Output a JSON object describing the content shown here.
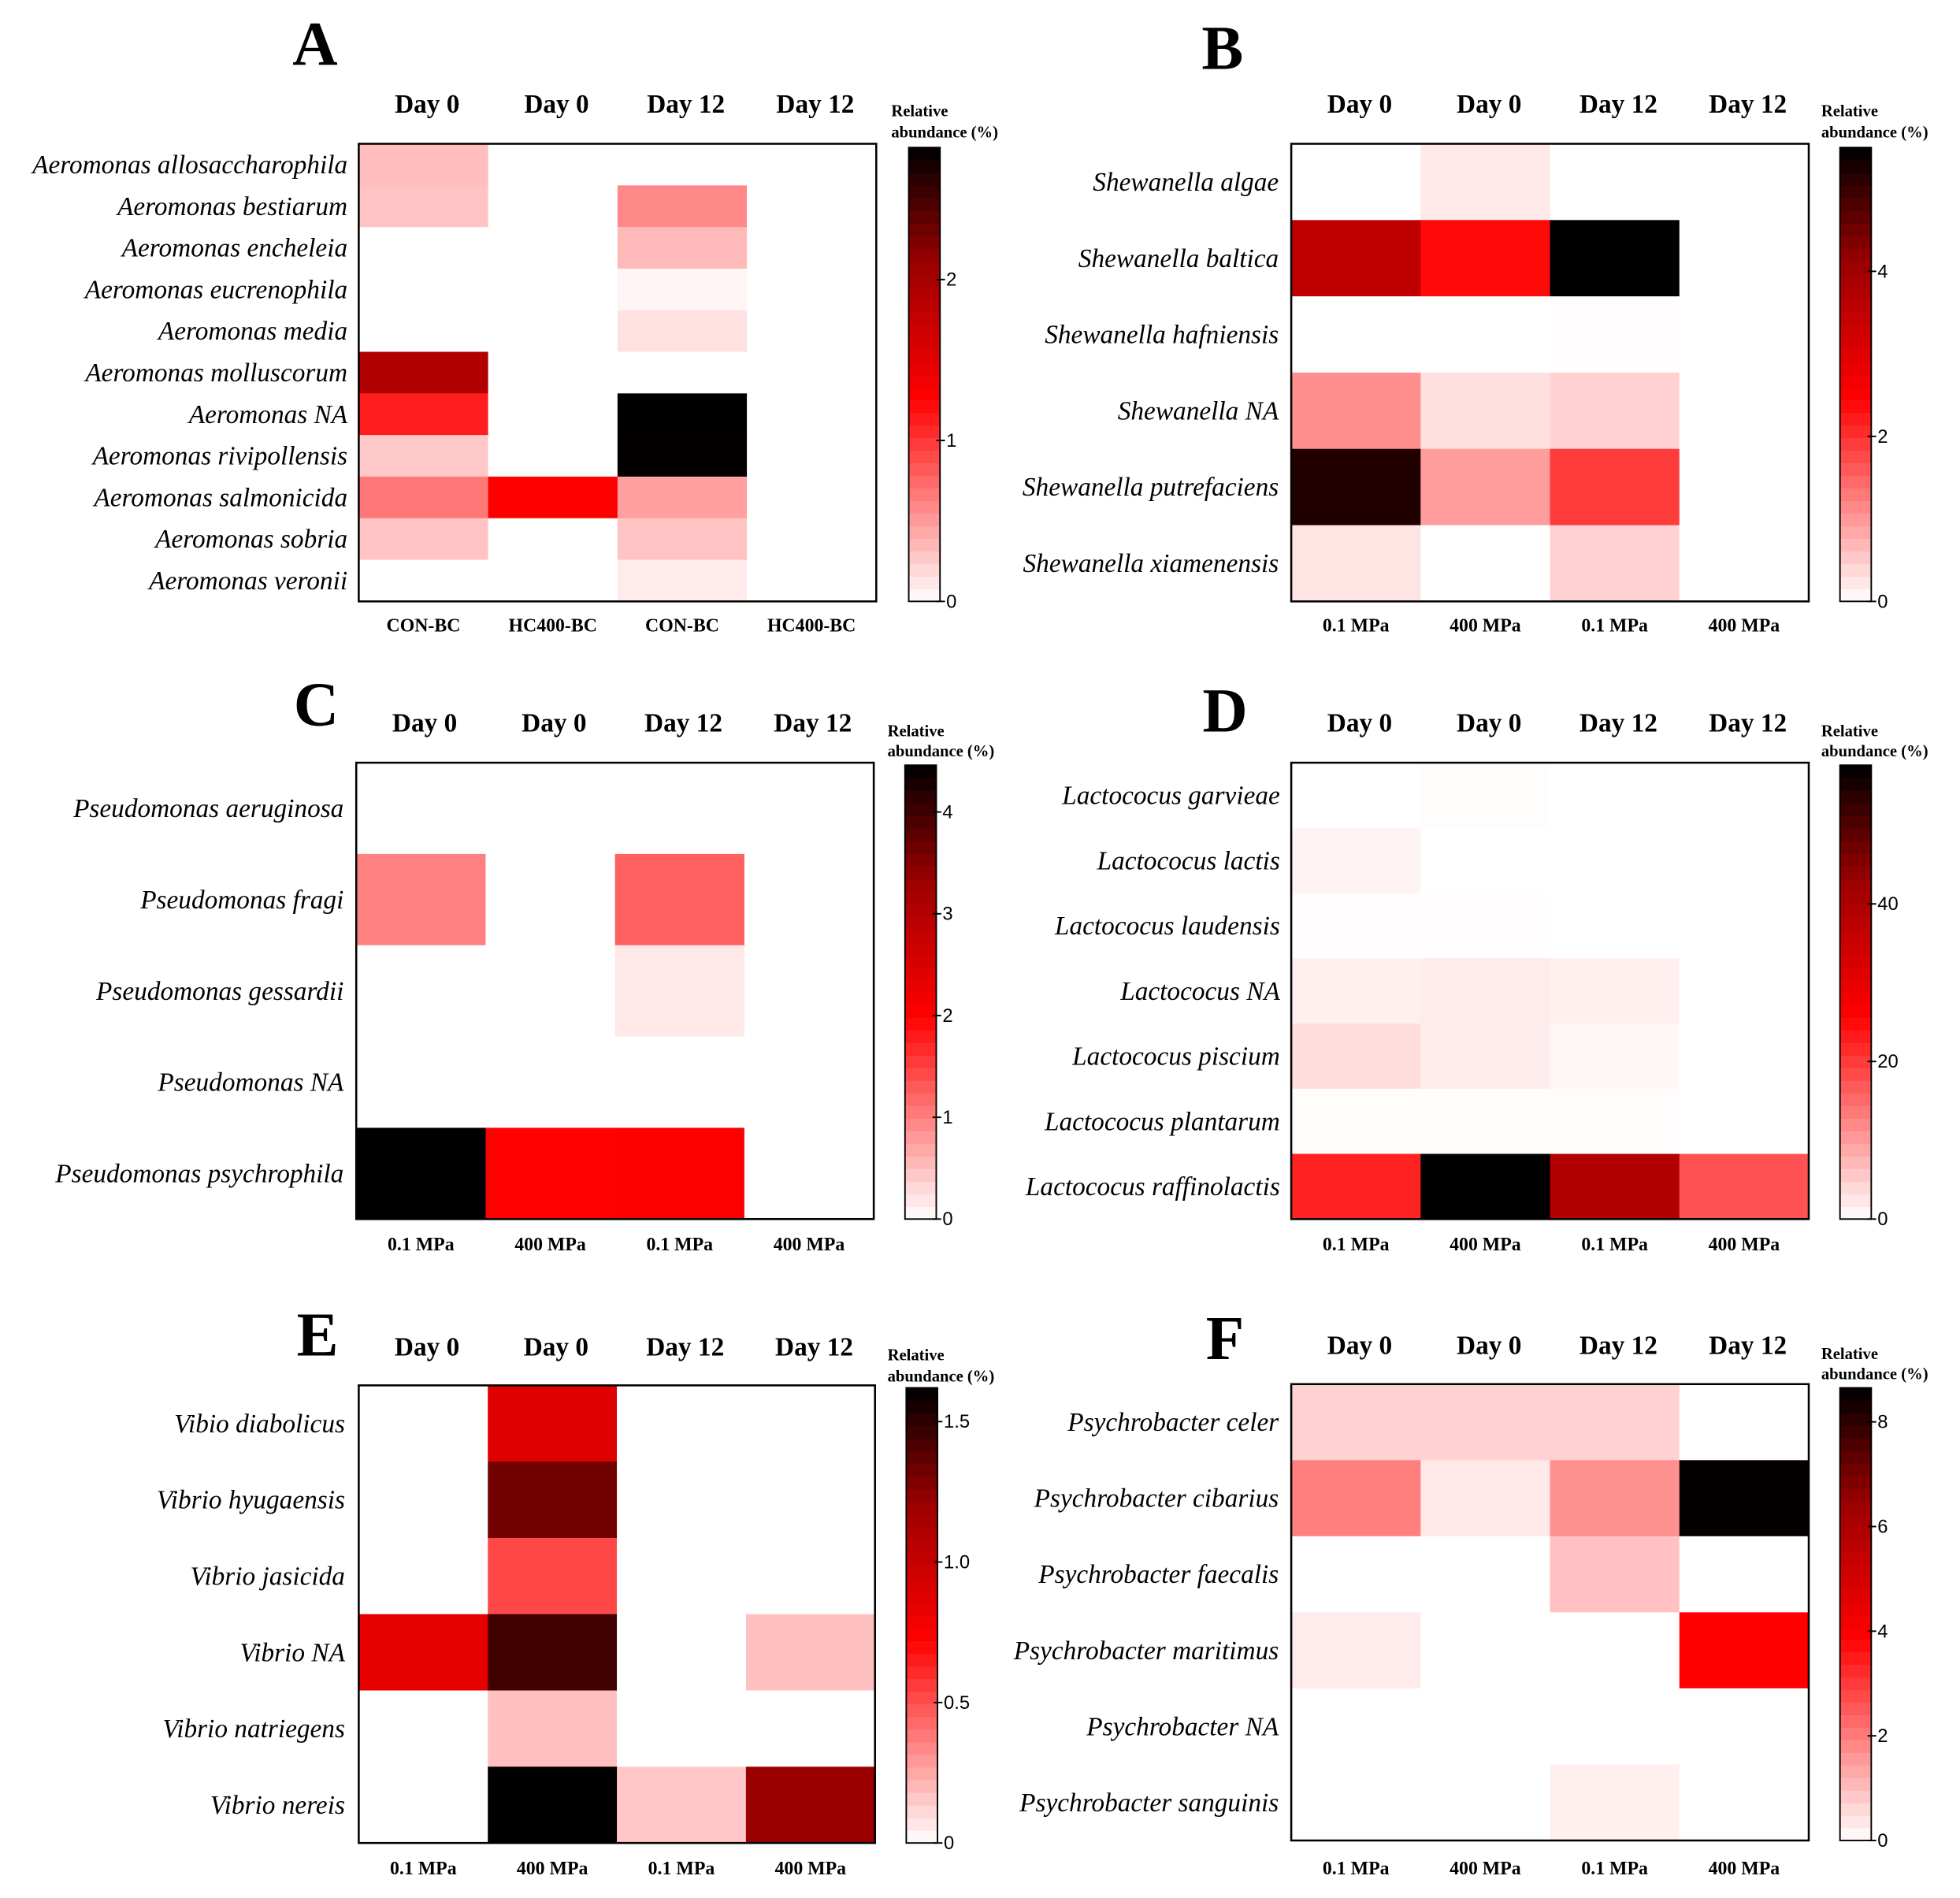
{
  "colormap": [
    "#ffffff",
    "#ff0000",
    "#990000",
    "#000000"
  ],
  "chart_data": [
    {
      "panel": "A",
      "type": "heatmap",
      "column_headers": [
        "Day 0",
        "Day 0",
        "Day 12",
        "Day 12"
      ],
      "column_labels": [
        "CON-BC",
        "HC400-BC",
        "CON-BC",
        "HC400-BC"
      ],
      "rows": [
        "Aeromonas allosaccharophila",
        "Aeromonas bestiarum",
        "Aeromonas encheleia",
        "Aeromonas eucrenophila",
        "Aeromonas media",
        "Aeromonas molluscorum",
        "Aeromonas NA",
        "Aeromonas rivipollensis",
        "Aeromonas salmonicida",
        "Aeromonas sobria",
        "Aeromonas veronii"
      ],
      "values": [
        [
          0.33,
          0,
          0,
          0
        ],
        [
          0.3,
          0,
          0.59,
          0
        ],
        [
          0,
          0,
          0.35,
          0
        ],
        [
          0,
          0,
          0.05,
          0
        ],
        [
          0,
          0,
          0.15,
          0
        ],
        [
          1.92,
          0,
          0,
          0
        ],
        [
          1.12,
          0,
          2.82,
          0
        ],
        [
          0.27,
          0,
          2.8,
          0
        ],
        [
          0.67,
          1.27,
          0.48,
          0
        ],
        [
          0.3,
          0,
          0.3,
          0
        ],
        [
          0,
          0,
          0.1,
          0
        ]
      ],
      "colorbar": {
        "label_lines": [
          "Relative",
          "abundance (%)"
        ],
        "min": 0,
        "max": 2.82,
        "ticks": [
          0,
          1,
          2
        ],
        "tick_labels": [
          "0",
          "1",
          "2"
        ]
      }
    },
    {
      "panel": "B",
      "type": "heatmap",
      "column_headers": [
        "Day 0",
        "Day 0",
        "Day 12",
        "Day 12"
      ],
      "column_labels": [
        "0.1 MPa",
        "400 MPa",
        "0.1 MPa",
        "400 MPa"
      ],
      "rows": [
        "Shewanella algae",
        "Shewanella baltica",
        "Shewanella hafniensis",
        "Shewanella NA",
        "Shewanella putrefaciens",
        "Shewanella xiamenensis"
      ],
      "values": [
        [
          0,
          0.22,
          0,
          0
        ],
        [
          3.5,
          2.4,
          5.5,
          0
        ],
        [
          0,
          0,
          0.02,
          0
        ],
        [
          1.1,
          0.3,
          0.45,
          0
        ],
        [
          5.2,
          0.95,
          1.9,
          0
        ],
        [
          0.26,
          0,
          0.45,
          0
        ]
      ],
      "colorbar": {
        "label_lines": [
          "Relative",
          "abundance (%)"
        ],
        "min": 0,
        "max": 5.5,
        "ticks": [
          0,
          2,
          4
        ],
        "tick_labels": [
          "0",
          "2",
          "4"
        ]
      }
    },
    {
      "panel": "C",
      "type": "heatmap",
      "column_headers": [
        "Day 0",
        "Day 0",
        "Day 12",
        "Day 12"
      ],
      "column_labels": [
        "0.1 MPa",
        "400 MPa",
        "0.1 MPa",
        "400 MPa"
      ],
      "rows": [
        "Pseudomonas aeruginosa",
        "Pseudomonas fragi",
        "Pseudomonas gessardii",
        "Pseudomonas NA",
        "Pseudomonas psychrophila"
      ],
      "values": [
        [
          0,
          0,
          0,
          0
        ],
        [
          1.0,
          0,
          1.25,
          0
        ],
        [
          0,
          0,
          0.18,
          0
        ],
        [
          0,
          0,
          0,
          0
        ],
        [
          4.46,
          2.0,
          2.05,
          0
        ]
      ],
      "colorbar": {
        "label_lines": [
          "Relative",
          "abundance (%)"
        ],
        "min": 0,
        "max": 4.46,
        "ticks": [
          0,
          1,
          2,
          3,
          4
        ],
        "tick_labels": [
          "0",
          "1",
          "2",
          "3",
          "4"
        ]
      }
    },
    {
      "panel": "D",
      "type": "heatmap",
      "column_headers": [
        "Day 0",
        "Day 0",
        "Day 12",
        "Day 12"
      ],
      "column_labels": [
        "0.1 MPa",
        "400 MPa",
        "0.1 MPa",
        "400 MPa"
      ],
      "rows": [
        "Lactococus garvieae",
        "Lactococus lactis",
        "Lactococus laudensis",
        "Lactococus NA",
        "Lactococus piscium",
        "Lactococus plantarum",
        "Lactococus raffinolactis"
      ],
      "values": [
        [
          0,
          0.3,
          0,
          0
        ],
        [
          1.2,
          0,
          0,
          0
        ],
        [
          0.2,
          0.2,
          0,
          0
        ],
        [
          1.5,
          2.0,
          1.5,
          0
        ],
        [
          3.5,
          1.8,
          0.8,
          0
        ],
        [
          0.3,
          0.3,
          0.3,
          0
        ],
        [
          22.5,
          57.6,
          39,
          17.5
        ]
      ],
      "colorbar": {
        "label_lines": [
          "Relative",
          "abundance (%)"
        ],
        "min": 0,
        "max": 57.6,
        "ticks": [
          0,
          20,
          40
        ],
        "tick_labels": [
          "0",
          "20",
          "40"
        ]
      }
    },
    {
      "panel": "E",
      "type": "heatmap",
      "column_headers": [
        "Day 0",
        "Day 0",
        "Day 12",
        "Day 12"
      ],
      "column_labels": [
        "0.1 MPa",
        "400 MPa",
        "0.1 MPa",
        "400 MPa"
      ],
      "rows": [
        "Vibio diabolicus",
        "Vibrio hyugaensis",
        "Vibrio jasicida",
        "Vibrio NA",
        "Vibrio natriegens",
        "Vibrio nereis"
      ],
      "values": [
        [
          0,
          0.88,
          0,
          0
        ],
        [
          0,
          1.32,
          0,
          0
        ],
        [
          0,
          0.52,
          0,
          0
        ],
        [
          0.85,
          1.45,
          0,
          0.18
        ],
        [
          0,
          0.18,
          0,
          0
        ],
        [
          0,
          1.62,
          0.16,
          1.21
        ]
      ],
      "colorbar": {
        "label_lines": [
          "Relative",
          "abundance (%)"
        ],
        "min": 0,
        "max": 1.62,
        "ticks": [
          0,
          0.5,
          1.0,
          1.5
        ],
        "tick_labels": [
          "0",
          "0.5",
          "1.0",
          "1.5"
        ]
      }
    },
    {
      "panel": "F",
      "type": "heatmap",
      "column_headers": [
        "Day 0",
        "Day 0",
        "Day 12",
        "Day 12"
      ],
      "column_labels": [
        "0.1 MPa",
        "400 MPa",
        "0.1 MPa",
        "400 MPa"
      ],
      "rows": [
        "Psychrobacter celer",
        "Psychrobacter cibarius",
        "Psychrobacter faecalis",
        "Psychrobacter maritimus",
        "Psychrobacter NA",
        "Psychrobacter sanguinis"
      ],
      "values": [
        [
          0.7,
          0.7,
          0.7,
          0
        ],
        [
          1.95,
          0.35,
          1.7,
          8.6
        ],
        [
          0,
          0,
          0.95,
          0
        ],
        [
          0.3,
          0,
          0,
          3.9
        ],
        [
          0,
          0,
          0,
          0
        ],
        [
          0,
          0,
          0.25,
          0
        ]
      ],
      "colorbar": {
        "label_lines": [
          "Relative",
          "abundance (%)"
        ],
        "min": 0,
        "max": 8.65,
        "ticks": [
          0,
          2,
          4,
          6,
          8
        ],
        "tick_labels": [
          "0",
          "2",
          "4",
          "6",
          "8"
        ]
      }
    }
  ]
}
